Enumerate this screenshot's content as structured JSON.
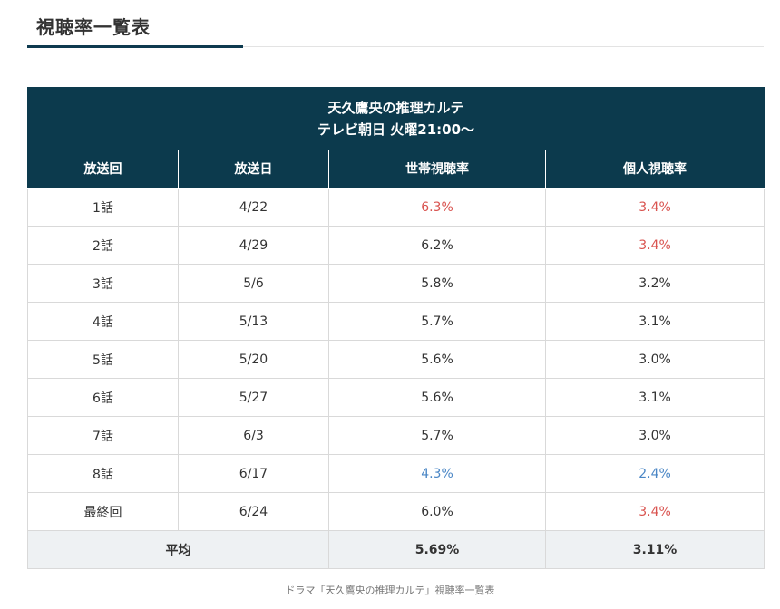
{
  "heading": "視聴率一覧表",
  "table": {
    "title_line1": "天久鷹央の推理カルテ",
    "title_line2": "テレビ朝日 火曜21:00〜",
    "headers": [
      "放送回",
      "放送日",
      "世帯視聴率",
      "個人視聴率"
    ],
    "rows": [
      {
        "episode": "1話",
        "date": "4/22",
        "household": "6.3%",
        "personal": "3.4%",
        "household_color": "red",
        "personal_color": "red"
      },
      {
        "episode": "2話",
        "date": "4/29",
        "household": "6.2%",
        "personal": "3.4%",
        "household_color": "",
        "personal_color": "red"
      },
      {
        "episode": "3話",
        "date": "5/6",
        "household": "5.8%",
        "personal": "3.2%",
        "household_color": "",
        "personal_color": ""
      },
      {
        "episode": "4話",
        "date": "5/13",
        "household": "5.7%",
        "personal": "3.1%",
        "household_color": "",
        "personal_color": ""
      },
      {
        "episode": "5話",
        "date": "5/20",
        "household": "5.6%",
        "personal": "3.0%",
        "household_color": "",
        "personal_color": ""
      },
      {
        "episode": "6話",
        "date": "5/27",
        "household": "5.6%",
        "personal": "3.1%",
        "household_color": "",
        "personal_color": ""
      },
      {
        "episode": "7話",
        "date": "6/3",
        "household": "5.7%",
        "personal": "3.0%",
        "household_color": "",
        "personal_color": ""
      },
      {
        "episode": "8話",
        "date": "6/17",
        "household": "4.3%",
        "personal": "2.4%",
        "household_color": "blue",
        "personal_color": "blue"
      },
      {
        "episode": "最終回",
        "date": "6/24",
        "household": "6.0%",
        "personal": "3.4%",
        "household_color": "",
        "personal_color": "red"
      }
    ],
    "average": {
      "label": "平均",
      "household": "5.69%",
      "personal": "3.11%"
    }
  },
  "caption": "ドラマ「天久鷹央の推理カルテ」視聴率一覧表",
  "colors": {
    "header_bg": "#0c3a4d",
    "high": "#d9534f",
    "low": "#4a86c5",
    "average_bg": "#eef1f3"
  }
}
